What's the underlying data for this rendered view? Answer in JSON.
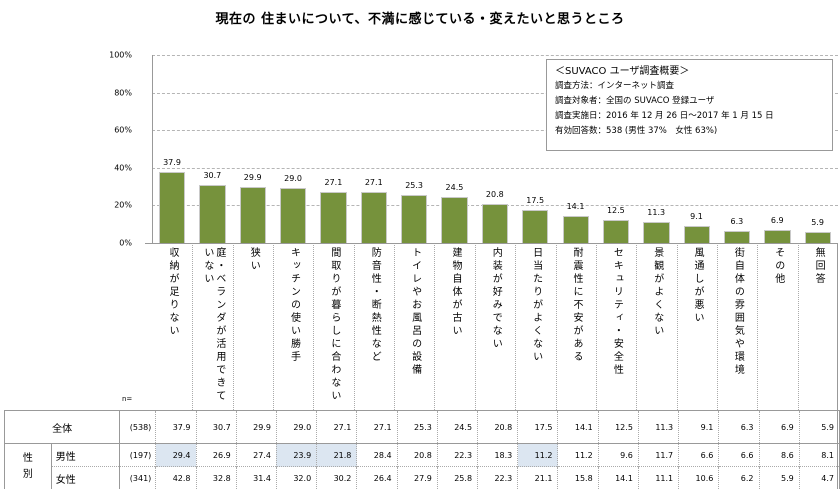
{
  "chart_data": {
    "type": "bar",
    "title": "現在の 住まいについて、不満に感じている・変えたいと思うところ",
    "xlabel": "",
    "ylabel": "",
    "ylim": [
      0,
      100
    ],
    "yticks": [
      "0%",
      "20%",
      "40%",
      "60%",
      "80%",
      "100%"
    ],
    "grid": true,
    "bar_color": "#76923c",
    "categories": [
      "収納が足りない",
      "庭・ベランダが活用できていない",
      "狭い",
      "キッチンの使い勝手",
      "間取りが暮らしに合わない",
      "防音性・断熱性など",
      "トイレやお風呂の設備",
      "建物自体が古い",
      "内装が好みでない",
      "日当たりがよくない",
      "耐震性に不安がある",
      "セキュリティ・安全性",
      "景観がよくない",
      "風通しが悪い",
      "街自体の雰囲気や環境",
      "その他",
      "無回答"
    ],
    "values": [
      37.9,
      30.7,
      29.9,
      29.0,
      27.1,
      27.1,
      25.3,
      24.5,
      20.8,
      17.5,
      14.1,
      12.5,
      11.3,
      9.1,
      6.3,
      6.9,
      5.9
    ],
    "value_labels": [
      "37.9",
      "30.7",
      "29.9",
      "29.0",
      "27.1",
      "27.1",
      "25.3",
      "24.5",
      "20.8",
      "17.5",
      "14.1",
      "12.5",
      "11.3",
      "9.1",
      "6.3",
      "6.9",
      "5.9"
    ],
    "table": {
      "n_header": "n=",
      "gender_group_label": "性別",
      "rows": [
        {
          "label": "全体",
          "n": "(538)",
          "values": [
            "37.9",
            "30.7",
            "29.9",
            "29.0",
            "27.1",
            "27.1",
            "25.3",
            "24.5",
            "20.8",
            "17.5",
            "14.1",
            "12.5",
            "11.3",
            "9.1",
            "6.3",
            "6.9",
            "5.9"
          ],
          "highlight": []
        },
        {
          "label": "男性",
          "n": "(197)",
          "values": [
            "29.4",
            "26.9",
            "27.4",
            "23.9",
            "21.8",
            "28.4",
            "20.8",
            "22.3",
            "18.3",
            "11.2",
            "11.2",
            "9.6",
            "11.7",
            "6.6",
            "6.6",
            "8.6",
            "8.1"
          ],
          "highlight": [
            0,
            3,
            4,
            9
          ]
        },
        {
          "label": "女性",
          "n": "(341)",
          "values": [
            "42.8",
            "32.8",
            "31.4",
            "32.0",
            "30.2",
            "26.4",
            "27.9",
            "25.8",
            "22.3",
            "21.1",
            "15.8",
            "14.1",
            "11.1",
            "10.6",
            "6.2",
            "5.9",
            "4.7"
          ],
          "highlight": []
        }
      ],
      "highlight_color": "#dce6f1"
    },
    "annotation": {
      "heading": "＜SUVACO ユーザ調査概要＞",
      "lines": [
        "調査方法：インターネット調査",
        "調査対象者：全国の SUVACO 登録ユーザ",
        "調査実施日：2016 年 12 月 26 日～2017 年 1 月 15 日",
        "有効回答数：538 (男性 37%　女性 63%)"
      ]
    }
  }
}
